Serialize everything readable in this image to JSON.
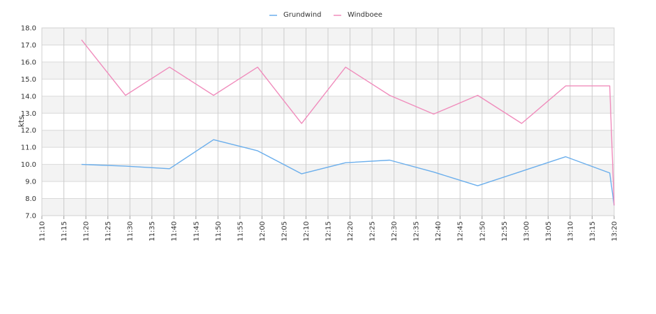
{
  "chart_data": {
    "type": "line",
    "title": "",
    "xlabel": "",
    "ylabel": "kts",
    "ylim": [
      7.0,
      18.0
    ],
    "y_ticks": [
      "7.0",
      "8.0",
      "9.0",
      "10.0",
      "11.0",
      "12.0",
      "13.0",
      "14.0",
      "15.0",
      "16.0",
      "17.0",
      "18.0"
    ],
    "x_ticks": [
      "11:10",
      "11:15",
      "11:20",
      "11:25",
      "11:30",
      "11:35",
      "11:40",
      "11:45",
      "11:50",
      "11:55",
      "12:00",
      "12:05",
      "12:10",
      "12:15",
      "12:20",
      "12:25",
      "12:30",
      "12:35",
      "12:40",
      "12:45",
      "12:50",
      "12:55",
      "13:00",
      "13:05",
      "13:10",
      "13:15",
      "13:20"
    ],
    "xlim": [
      "11:10",
      "13:20"
    ],
    "grid": true,
    "alternating_bands": true,
    "legend_position": "top-center",
    "series": [
      {
        "name": "Grundwind",
        "color": "#6aaeec",
        "points": [
          [
            "11:19",
            10.0
          ],
          [
            "11:29",
            9.9
          ],
          [
            "11:39",
            9.75
          ],
          [
            "11:49",
            11.45
          ],
          [
            "11:59",
            10.8
          ],
          [
            "12:09",
            9.45
          ],
          [
            "12:19",
            10.1
          ],
          [
            "12:29",
            10.25
          ],
          [
            "12:39",
            9.55
          ],
          [
            "12:49",
            8.75
          ],
          [
            "12:59",
            9.6
          ],
          [
            "13:09",
            10.45
          ],
          [
            "13:19",
            9.5
          ],
          [
            "13:20",
            7.6
          ]
        ]
      },
      {
        "name": "Windboee",
        "color": "#f08cbc",
        "points": [
          [
            "11:19",
            17.3
          ],
          [
            "11:29",
            14.05
          ],
          [
            "11:39",
            15.7
          ],
          [
            "11:49",
            14.05
          ],
          [
            "11:59",
            15.7
          ],
          [
            "12:09",
            12.4
          ],
          [
            "12:19",
            15.7
          ],
          [
            "12:29",
            14.05
          ],
          [
            "12:39",
            12.95
          ],
          [
            "12:49",
            14.05
          ],
          [
            "12:59",
            12.4
          ],
          [
            "13:09",
            14.6
          ],
          [
            "13:19",
            14.6
          ],
          [
            "13:20",
            7.6
          ]
        ]
      }
    ]
  }
}
